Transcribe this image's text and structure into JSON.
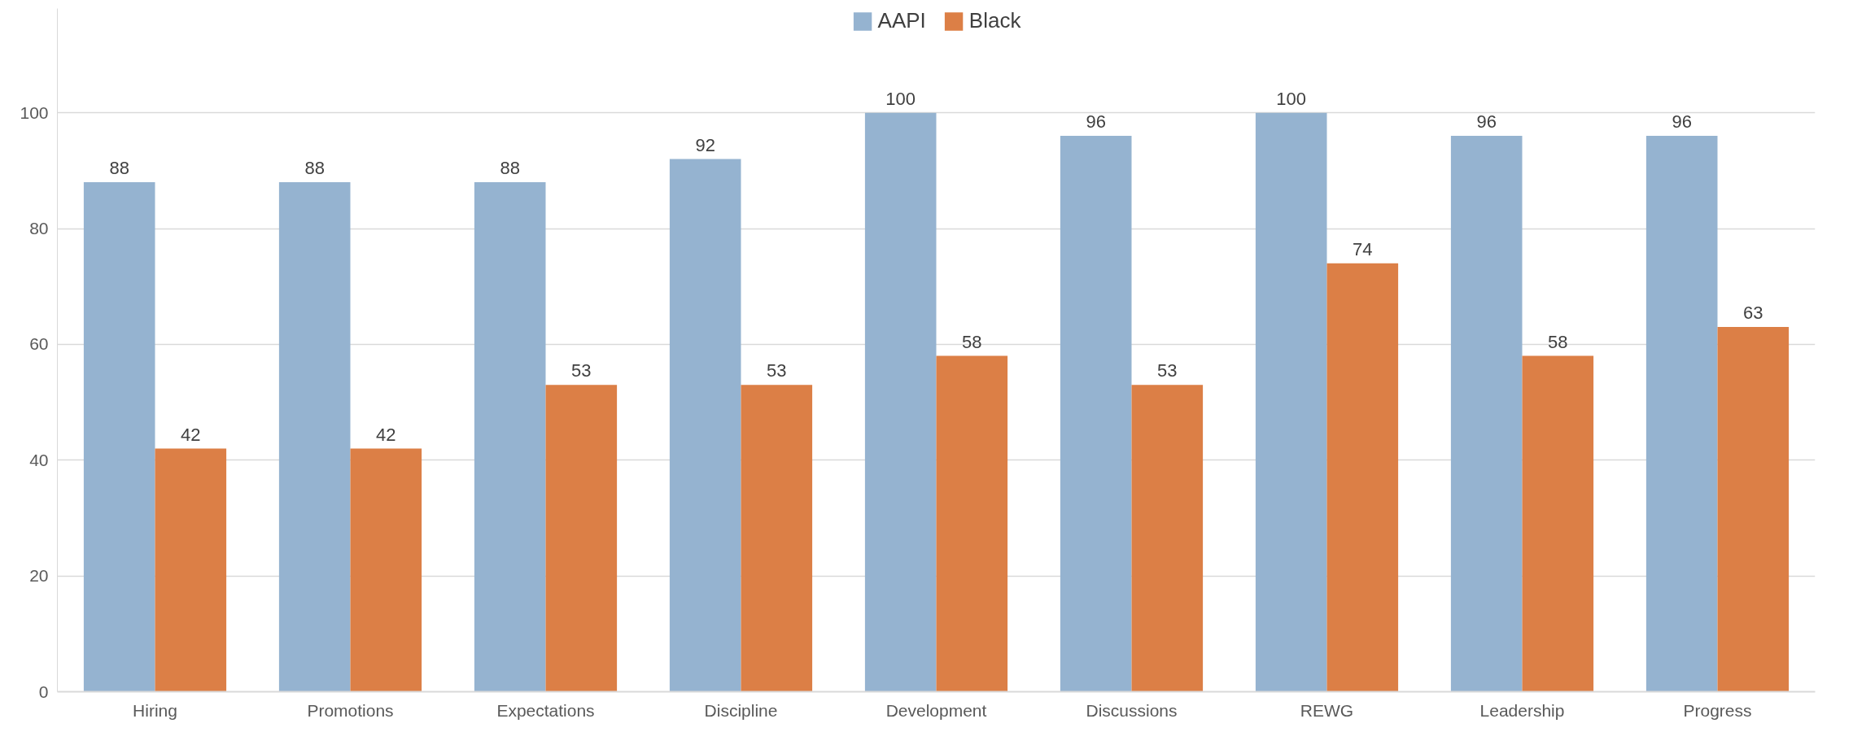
{
  "chart_data": {
    "type": "bar",
    "categories": [
      "Hiring",
      "Promotions",
      "Expectations",
      "Discipline",
      "Development",
      "Discussions",
      "REWG",
      "Leadership",
      "Progress"
    ],
    "series": [
      {
        "name": "AAPI",
        "color": "#95b3d0",
        "values": [
          88,
          88,
          88,
          92,
          100,
          96,
          100,
          96,
          96
        ]
      },
      {
        "name": "Black",
        "color": "#dc7f46",
        "values": [
          42,
          42,
          53,
          53,
          58,
          53,
          74,
          58,
          63
        ]
      }
    ],
    "ylim": [
      0,
      118
    ],
    "yticks": [
      0,
      20,
      40,
      60,
      80,
      100
    ],
    "grid": "y",
    "legend": "top",
    "data_labels": true
  }
}
